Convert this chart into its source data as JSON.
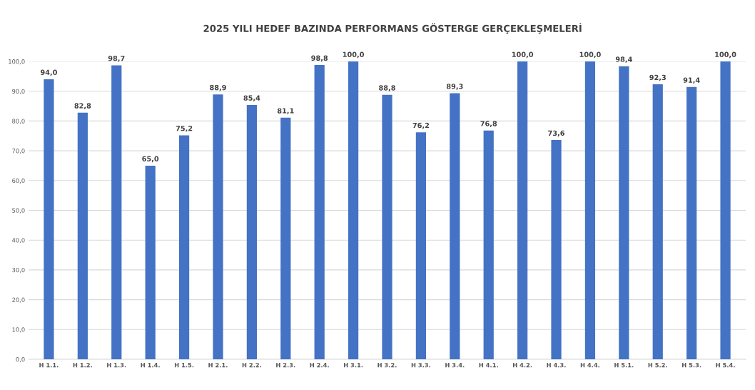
{
  "chart_data": {
    "type": "bar",
    "title": "2025 YILI HEDEF BAZINDA PERFORMANS GÖSTERGE GERÇEKLEŞMELERİ",
    "categories": [
      "H 1.1.",
      "H 1.2.",
      "H 1.3.",
      "H 1.4.",
      "H 1.5.",
      "H 2.1.",
      "H 2.2.",
      "H 2.3.",
      "H 2.4.",
      "H 3.1.",
      "H 3.2.",
      "H 3.3.",
      "H 3.4.",
      "H 4.1.",
      "H 4.2.",
      "H 4.3.",
      "H 4.4.",
      "H 5.1.",
      "H 5.2.",
      "H 5.3.",
      "H 5.4."
    ],
    "values": [
      94.0,
      82.8,
      98.7,
      65.0,
      75.2,
      88.9,
      85.4,
      81.1,
      98.8,
      100.0,
      88.8,
      76.2,
      89.3,
      76.8,
      100.0,
      73.6,
      100.0,
      98.4,
      92.3,
      91.4,
      100.0
    ],
    "value_labels": [
      "94,0",
      "82,8",
      "98,7",
      "65,0",
      "75,2",
      "88,9",
      "85,4",
      "81,1",
      "98,8",
      "100,0",
      "88,8",
      "76,2",
      "89,3",
      "76,8",
      "100,0",
      "73,6",
      "100,0",
      "98,4",
      "92,3",
      "91,4",
      "100,0"
    ],
    "color": "#4472c4",
    "ylim": [
      0,
      100
    ],
    "yticks": [
      {
        "value": 0,
        "label": "0,0"
      },
      {
        "value": 10,
        "label": "10,0"
      },
      {
        "value": 20,
        "label": "20,0"
      },
      {
        "value": 30,
        "label": "30,0"
      },
      {
        "value": 40,
        "label": "40,0"
      },
      {
        "value": 50,
        "label": "50,0"
      },
      {
        "value": 60,
        "label": "60,0"
      },
      {
        "value": 70,
        "label": "70,0"
      },
      {
        "value": 80,
        "label": "80,0"
      },
      {
        "value": 90,
        "label": "90,0"
      },
      {
        "value": 100,
        "label": "100,0"
      }
    ],
    "grid": "y"
  }
}
